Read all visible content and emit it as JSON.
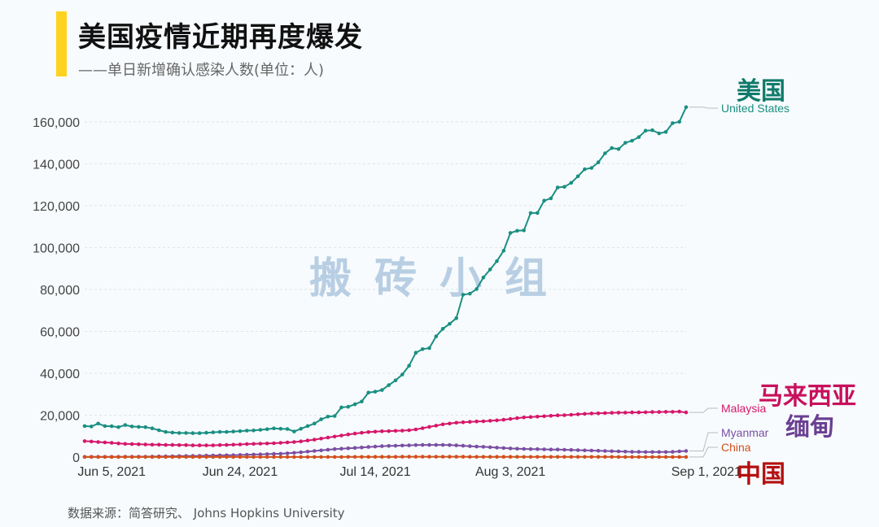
{
  "header": {
    "title": "美国疫情近期再度爆发",
    "subtitle": "——单日新增确认感染人数(单位：人)",
    "accent_color": "#ffd21f"
  },
  "source": "数据来源：简答研究、 Johns Hopkins University",
  "watermark": "搬砖小组",
  "chart_data": {
    "type": "line",
    "start_date": "2021-06-01",
    "x_ticks": [
      {
        "label": "Jun 5, 2021",
        "day": 4
      },
      {
        "label": "Jun 24, 2021",
        "day": 23
      },
      {
        "label": "Jul 14, 2021",
        "day": 43
      },
      {
        "label": "Aug 3, 2021",
        "day": 63
      },
      {
        "label": "Sep 1, 2021",
        "day": 92
      }
    ],
    "y_ticks": [
      0,
      20000,
      40000,
      60000,
      80000,
      100000,
      120000,
      140000,
      160000
    ],
    "y_tick_labels": [
      "0",
      "20,000",
      "40,000",
      "60,000",
      "80,000",
      "100,000",
      "120,000",
      "140,000",
      "160,000"
    ],
    "ylim": [
      0,
      170000
    ],
    "xlim": [
      0,
      95
    ],
    "grid": true,
    "series": [
      {
        "name": "United States",
        "cn_name": "美国",
        "color": "#1a8f82",
        "label_color": "#1a8f82",
        "cn_color": "#107a6a",
        "values": [
          14800,
          14600,
          16000,
          14800,
          14700,
          14300,
          15300,
          14600,
          14400,
          14300,
          13700,
          12800,
          12000,
          11700,
          11500,
          11500,
          11400,
          11400,
          11600,
          11800,
          12000,
          12000,
          12200,
          12400,
          12600,
          12700,
          13000,
          13300,
          13700,
          13500,
          13400,
          12200,
          13500,
          14800,
          16000,
          18000,
          19300,
          19600,
          23700,
          24000,
          25200,
          26500,
          30800,
          31200,
          32000,
          34300,
          36600,
          39400,
          43600,
          49800,
          51500,
          52000,
          57600,
          61200,
          63600,
          66300,
          77500,
          78000,
          80200,
          85700,
          89500,
          93500,
          98500,
          107000,
          108000,
          108200,
          116500,
          116500,
          122400,
          123500,
          128700,
          129000,
          130900,
          134000,
          137400,
          138000,
          140700,
          145000,
          147500,
          147000,
          150000,
          151000,
          152700,
          155800,
          156000,
          154500,
          155200,
          159400,
          160000,
          167000
        ]
      },
      {
        "name": "Malaysia",
        "cn_name": "马来西亚",
        "color": "#d6176a",
        "label_color": "#d6176a",
        "cn_color": "#c8105c",
        "values": [
          7600,
          7400,
          7200,
          7000,
          6800,
          6500,
          6300,
          6200,
          6100,
          6000,
          5900,
          5900,
          5800,
          5800,
          5700,
          5700,
          5600,
          5600,
          5600,
          5600,
          5700,
          5800,
          5900,
          6000,
          6200,
          6300,
          6400,
          6500,
          6600,
          6800,
          7000,
          7200,
          7500,
          7900,
          8300,
          8800,
          9300,
          9800,
          10300,
          10800,
          11200,
          11600,
          11900,
          12100,
          12300,
          12400,
          12500,
          12600,
          12800,
          13200,
          13800,
          14400,
          15000,
          15600,
          16000,
          16400,
          16600,
          16800,
          17000,
          17100,
          17300,
          17500,
          17800,
          18200,
          18600,
          18900,
          19100,
          19300,
          19500,
          19700,
          19900,
          20000,
          20200,
          20400,
          20600,
          20800,
          20900,
          21000,
          21100,
          21200,
          21200,
          21300,
          21300,
          21400,
          21500,
          21500,
          21600,
          21600,
          21700,
          21300
        ]
      },
      {
        "name": "Myanmar",
        "cn_name": "缅甸",
        "color": "#7a4fa3",
        "label_color": "#7a4fa3",
        "cn_color": "#6a3f93",
        "values": [
          100,
          100,
          100,
          100,
          100,
          100,
          150,
          150,
          200,
          200,
          250,
          300,
          350,
          400,
          450,
          500,
          550,
          600,
          700,
          750,
          800,
          850,
          900,
          1000,
          1100,
          1200,
          1300,
          1400,
          1500,
          1600,
          1800,
          2000,
          2300,
          2600,
          2900,
          3200,
          3500,
          3800,
          4000,
          4200,
          4400,
          4600,
          4800,
          5000,
          5200,
          5300,
          5400,
          5500,
          5600,
          5700,
          5800,
          5800,
          5800,
          5800,
          5700,
          5600,
          5400,
          5200,
          5000,
          4900,
          4700,
          4500,
          4300,
          4100,
          4000,
          3900,
          3800,
          3800,
          3700,
          3600,
          3600,
          3500,
          3400,
          3300,
          3200,
          3100,
          3000,
          2900,
          2800,
          2700,
          2600,
          2500,
          2500,
          2400,
          2400,
          2400,
          2400,
          2500,
          2700,
          2900
        ]
      },
      {
        "name": "China",
        "cn_name": "中国",
        "color": "#d2501e",
        "label_color": "#d2501e",
        "cn_color": "#b40f0f",
        "values": [
          30,
          30,
          30,
          30,
          30,
          30,
          30,
          30,
          30,
          30,
          30,
          30,
          30,
          30,
          30,
          30,
          30,
          30,
          30,
          30,
          30,
          30,
          30,
          30,
          30,
          30,
          30,
          30,
          30,
          30,
          30,
          30,
          30,
          30,
          30,
          30,
          40,
          40,
          50,
          60,
          70,
          80,
          90,
          100,
          110,
          120,
          130,
          140,
          150,
          150,
          150,
          150,
          150,
          150,
          150,
          140,
          140,
          130,
          130,
          120,
          120,
          110,
          110,
          100,
          100,
          90,
          90,
          80,
          80,
          80,
          80,
          70,
          70,
          70,
          70,
          60,
          60,
          60,
          60,
          50,
          50,
          50,
          50,
          50,
          50,
          40,
          40,
          40,
          40,
          40
        ]
      }
    ]
  }
}
